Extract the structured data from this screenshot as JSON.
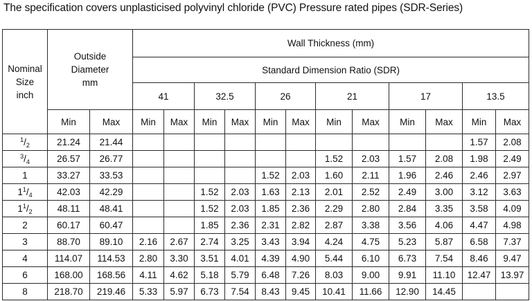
{
  "title": "The specification covers unplasticised polyvinyl chloride (PVC) Pressure rated pipes (SDR-Series)",
  "header": {
    "nominal": [
      "Nominal",
      "Size",
      "inch"
    ],
    "outside": [
      "Outside",
      "Diameter",
      "mm"
    ],
    "wall": "Wall Thickness (mm)",
    "sdr": "Standard Dimension Ratio (SDR)",
    "sdr_values": [
      "41",
      "32.5",
      "26",
      "21",
      "17",
      "13.5"
    ],
    "min": "Min",
    "max": "Max"
  },
  "rows": [
    {
      "size": {
        "whole": "",
        "num": "1",
        "den": "2"
      },
      "od_min": "21.24",
      "od_max": "21.44",
      "wall": [
        "",
        "",
        "",
        "",
        "",
        "",
        "",
        "",
        "",
        "",
        "1.57",
        "2.08"
      ]
    },
    {
      "size": {
        "whole": "",
        "num": "3",
        "den": "4"
      },
      "od_min": "26.57",
      "od_max": "26.77",
      "wall": [
        "",
        "",
        "",
        "",
        "",
        "",
        "1.52",
        "2.03",
        "1.57",
        "2.08",
        "1.98",
        "2.49"
      ]
    },
    {
      "size": {
        "whole": "1",
        "num": "",
        "den": ""
      },
      "od_min": "33.27",
      "od_max": "33.53",
      "wall": [
        "",
        "",
        "",
        "",
        "1.52",
        "2.03",
        "1.60",
        "2.11",
        "1.96",
        "2.46",
        "2.46",
        "2.97"
      ]
    },
    {
      "size": {
        "whole": "1",
        "num": "1",
        "den": "4"
      },
      "od_min": "42.03",
      "od_max": "42.29",
      "wall": [
        "",
        "",
        "1.52",
        "2.03",
        "1.63",
        "2.13",
        "2.01",
        "2.52",
        "2.49",
        "3.00",
        "3.12",
        "3.63"
      ]
    },
    {
      "size": {
        "whole": "1",
        "num": "1",
        "den": "2"
      },
      "od_min": "48.11",
      "od_max": "48.41",
      "wall": [
        "",
        "",
        "1.52",
        "2.03",
        "1.85",
        "2.36",
        "2.29",
        "2.80",
        "2.84",
        "3.35",
        "3.58",
        "4.09"
      ]
    },
    {
      "size": {
        "whole": "2",
        "num": "",
        "den": ""
      },
      "od_min": "60.17",
      "od_max": "60.47",
      "wall": [
        "",
        "",
        "1.85",
        "2.36",
        "2.31",
        "2.82",
        "2.87",
        "3.38",
        "3.56",
        "4.06",
        "4.47",
        "4.98"
      ]
    },
    {
      "size": {
        "whole": "3",
        "num": "",
        "den": ""
      },
      "od_min": "88.70",
      "od_max": "89.10",
      "wall": [
        "2.16",
        "2.67",
        "2.74",
        "3.25",
        "3.43",
        "3.94",
        "4.24",
        "4.75",
        "5.23",
        "5.87",
        "6.58",
        "7.37"
      ]
    },
    {
      "size": {
        "whole": "4",
        "num": "",
        "den": ""
      },
      "od_min": "114.07",
      "od_max": "114.53",
      "wall": [
        "2.80",
        "3.30",
        "3.51",
        "4.01",
        "4.39",
        "4.90",
        "5.44",
        "6.10",
        "6.73",
        "7.54",
        "8.46",
        "9.47"
      ]
    },
    {
      "size": {
        "whole": "6",
        "num": "",
        "den": ""
      },
      "od_min": "168.00",
      "od_max": "168.56",
      "wall": [
        "4.11",
        "4.62",
        "5.18",
        "5.79",
        "6.48",
        "7.26",
        "8.03",
        "9.00",
        "9.91",
        "11.10",
        "12.47",
        "13.97"
      ]
    },
    {
      "size": {
        "whole": "8",
        "num": "",
        "den": ""
      },
      "od_min": "218.70",
      "od_max": "219.46",
      "wall": [
        "5.33",
        "5.97",
        "6.73",
        "7.54",
        "8.43",
        "9.45",
        "10.41",
        "11.66",
        "12.90",
        "14.45",
        "",
        ""
      ]
    }
  ]
}
